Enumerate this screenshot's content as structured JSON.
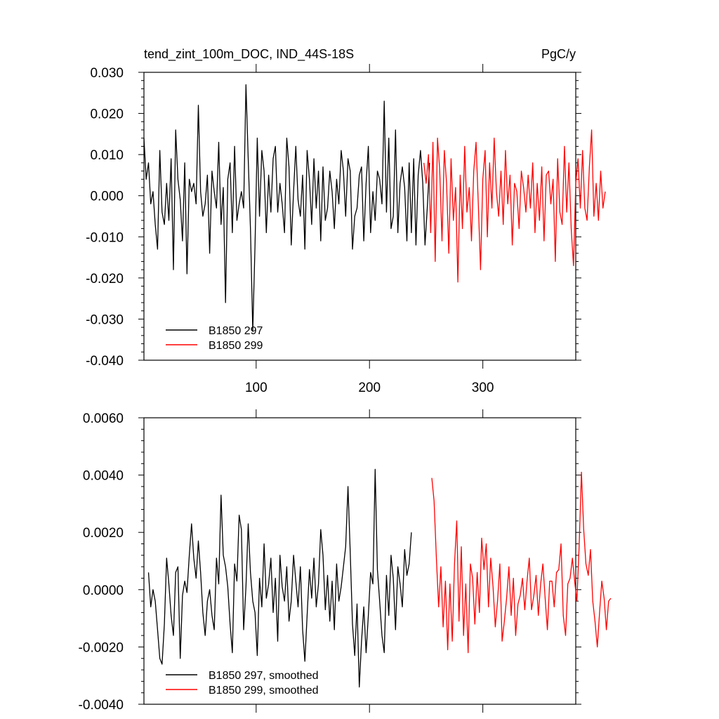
{
  "colors": {
    "run_297": "#000000",
    "run_299": "#ff0000",
    "background": "#ffffff"
  },
  "chart_data": [
    {
      "type": "line",
      "title": "tend_zint_100m_DOC, IND_44S-18S",
      "units": "PgC/y",
      "xlim": [
        1,
        382
      ],
      "ylim": [
        -0.04,
        0.03
      ],
      "xticks": [
        100,
        200,
        300
      ],
      "xtick_labels": [
        "100",
        "200",
        "300"
      ],
      "yticks": [
        -0.04,
        -0.03,
        -0.02,
        -0.01,
        0.0,
        0.01,
        0.02,
        0.03
      ],
      "ytick_labels": [
        "-0.040",
        "-0.030",
        "-0.020",
        "-0.010",
        "0.000",
        "0.010",
        "0.020",
        "0.030"
      ],
      "legend_position": "bottom-left",
      "series": [
        {
          "name": "B1850 297",
          "x_start": 1,
          "x_step": 2,
          "values": [
            0.014,
            0.004,
            0.008,
            -0.002,
            0.001,
            -0.007,
            -0.013,
            0.011,
            -0.004,
            -0.007,
            0.003,
            -0.006,
            0.009,
            -0.018,
            0.016,
            0.004,
            -0.001,
            -0.011,
            0.008,
            -0.019,
            0.004,
            0.001,
            0.003,
            -0.002,
            0.022,
            0.001,
            -0.005,
            -0.002,
            0.005,
            -0.014,
            0.006,
            0.001,
            -0.003,
            0.013,
            -0.007,
            0.002,
            -0.026,
            0.004,
            0.008,
            -0.009,
            0.012,
            -0.006,
            -0.002,
            0.001,
            -0.003,
            0.027,
            0.009,
            -0.008,
            -0.033,
            -0.012,
            0.014,
            -0.005,
            0.011,
            0.006,
            -0.009,
            0.005,
            -0.004,
            0.009,
            0.012,
            -0.004,
            0.003,
            -0.002,
            -0.009,
            0.014,
            0.007,
            -0.012,
            0.001,
            0.012,
            -0.001,
            -0.005,
            0.005,
            -0.013,
            0.011,
            0.004,
            -0.007,
            0.009,
            -0.003,
            0.006,
            -0.011,
            0.007,
            -0.006,
            -0.003,
            0.006,
            0.001,
            -0.008,
            0.004,
            -0.002,
            0.011,
            0.006,
            -0.005,
            0.009,
            0.006,
            -0.013,
            -0.005,
            -0.003,
            0.005,
            0.007,
            -0.011,
            0.003,
            0.012,
            -0.009,
            0.001,
            -0.006,
            0.006,
            0.004,
            -0.002,
            0.023,
            -0.004,
            0.014,
            -0.008,
            -0.005,
            0.016,
            -0.009,
            0.003,
            0.007,
            0.002,
            -0.011,
            0.008,
            -0.009,
            0.009,
            -0.012,
            0.005,
            0.011,
            0.003,
            -0.012,
            -0.003,
            0.008
          ]
        },
        {
          "name": "B1850 299",
          "x_start": 248,
          "x_step": 2,
          "values": [
            0.008,
            0.003,
            0.01,
            -0.009,
            0.013,
            -0.016,
            0.014,
            0.006,
            -0.011,
            0.011,
            0.003,
            -0.014,
            0.009,
            -0.006,
            0.002,
            -0.021,
            0.005,
            -0.008,
            0.012,
            -0.004,
            0.002,
            -0.011,
            0.006,
            0.013,
            -0.002,
            -0.018,
            0.004,
            0.011,
            -0.01,
            0.008,
            -0.003,
            0.014,
            0.001,
            -0.005,
            0.006,
            -0.007,
            0.011,
            -0.002,
            0.005,
            -0.012,
            0.003,
            0.001,
            -0.008,
            0.006,
            0.002,
            -0.004,
            0.005,
            -0.003,
            0.008,
            -0.009,
            0.003,
            -0.006,
            0.007,
            -0.011,
            0.005,
            0.006,
            -0.002,
            0.004,
            -0.016,
            0.009,
            -0.004,
            -0.007,
            0.012,
            -0.004,
            0.008,
            -0.008,
            -0.017,
            0.003,
            0.009,
            -0.003,
            0.011,
            -0.003,
            -0.006,
            0.007,
            0.016,
            -0.005,
            0.003,
            -0.006,
            0.006,
            -0.003,
            0.001
          ]
        }
      ]
    },
    {
      "type": "line",
      "xlim": [
        1,
        382
      ],
      "ylim": [
        -0.004,
        0.006
      ],
      "xticks": [
        100,
        200,
        300
      ],
      "yticks": [
        -0.004,
        -0.002,
        0.0,
        0.002,
        0.004,
        0.006
      ],
      "ytick_labels": [
        "-0.0040",
        "-0.0020",
        "0.0000",
        "0.0020",
        "0.0040",
        "0.0060"
      ],
      "legend_position": "bottom-left",
      "series": [
        {
          "name": "B1850 297, smoothed",
          "x_start": 5,
          "x_step": 2,
          "values": [
            0.0006,
            -0.0006,
            0.0,
            -0.0004,
            -0.0014,
            -0.0024,
            -0.0026,
            -0.0012,
            0.0011,
            0.0002,
            -0.0009,
            -0.0016,
            0.0006,
            0.0008,
            -0.0024,
            -0.0002,
            0.0003,
            -0.0001,
            0.0012,
            0.0023,
            0.0011,
            0.0004,
            0.0017,
            0.0006,
            -0.0008,
            -0.0016,
            -0.0004,
            0.0,
            -0.0009,
            -0.0014,
            0.0011,
            0.0002,
            0.0033,
            0.0012,
            0.0008,
            0.0001,
            -0.0012,
            -0.0022,
            0.0009,
            0.0003,
            0.0026,
            0.0021,
            -0.0014,
            0.0001,
            0.0023,
            0.0006,
            -0.0004,
            -0.0008,
            -0.0023,
            0.0004,
            -0.0006,
            0.0016,
            -0.0003,
            0.0002,
            0.0011,
            -0.0008,
            0.0004,
            -0.0018,
            0.0012,
            0.0001,
            -0.0004,
            0.0008,
            -0.0011,
            -0.0004,
            0.0012,
            0.0003,
            -0.0006,
            0.0008,
            -0.0014,
            -0.0025,
            -0.0009,
            0.0007,
            -0.0003,
            0.0011,
            -0.0006,
            0.0002,
            0.0021,
            0.0012,
            -0.0007,
            0.0005,
            -0.0011,
            0.0003,
            -0.0014,
            0.0009,
            -0.0004,
            0.0001,
            0.0008,
            0.0015,
            0.0036,
            0.0013,
            -0.0012,
            -0.0023,
            -0.0005,
            -0.0034,
            -0.0018,
            -0.0006,
            -0.0022,
            -0.0009,
            0.0006,
            0.0002,
            0.0042,
            0.0007,
            -0.0004,
            -0.0016,
            -0.0022,
            0.0005,
            -0.0009,
            0.0012,
            0.0004,
            -0.0014,
            0.0008,
            0.0002,
            -0.0006,
            0.0014,
            0.0005,
            0.0009,
            0.002
          ]
        },
        {
          "name": "B1850 299, smoothed",
          "x_start": 255,
          "x_step": 2,
          "values": [
            0.0039,
            0.0031,
            0.0011,
            -0.0006,
            0.0008,
            -0.0013,
            0.0003,
            -0.0021,
            0.0002,
            -0.0018,
            0.0009,
            0.0024,
            -0.0011,
            0.0015,
            -0.0016,
            0.0002,
            -0.0022,
            0.0009,
            0.0004,
            -0.0012,
            0.0006,
            -0.0008,
            0.0018,
            0.0007,
            0.0016,
            -0.0006,
            0.0011,
            0.0001,
            -0.0013,
            -0.0004,
            0.0009,
            -0.0018,
            -0.0011,
            -0.0003,
            0.0008,
            -0.0009,
            0.0004,
            -0.0016,
            -0.0005,
            -0.0002,
            0.0004,
            -0.0007,
            0.0003,
            0.0011,
            -0.0007,
            -0.0002,
            0.0005,
            -0.0009,
            0.0002,
            0.0009,
            -0.0003,
            -0.0014,
            0.0003,
            0.0003,
            -0.0006,
            0.0006,
            0.0007,
            0.0016,
            -0.0009,
            -0.0016,
            0.0002,
            0.0004,
            0.0011,
            0.0003,
            -0.0004,
            0.0015,
            0.0041,
            0.0021,
            0.0009,
            0.0005,
            0.0014,
            -0.0004,
            -0.0011,
            -0.002,
            -0.0008,
            0.0003,
            -0.0003,
            -0.0014,
            -0.0004,
            -0.0003
          ]
        }
      ]
    }
  ]
}
